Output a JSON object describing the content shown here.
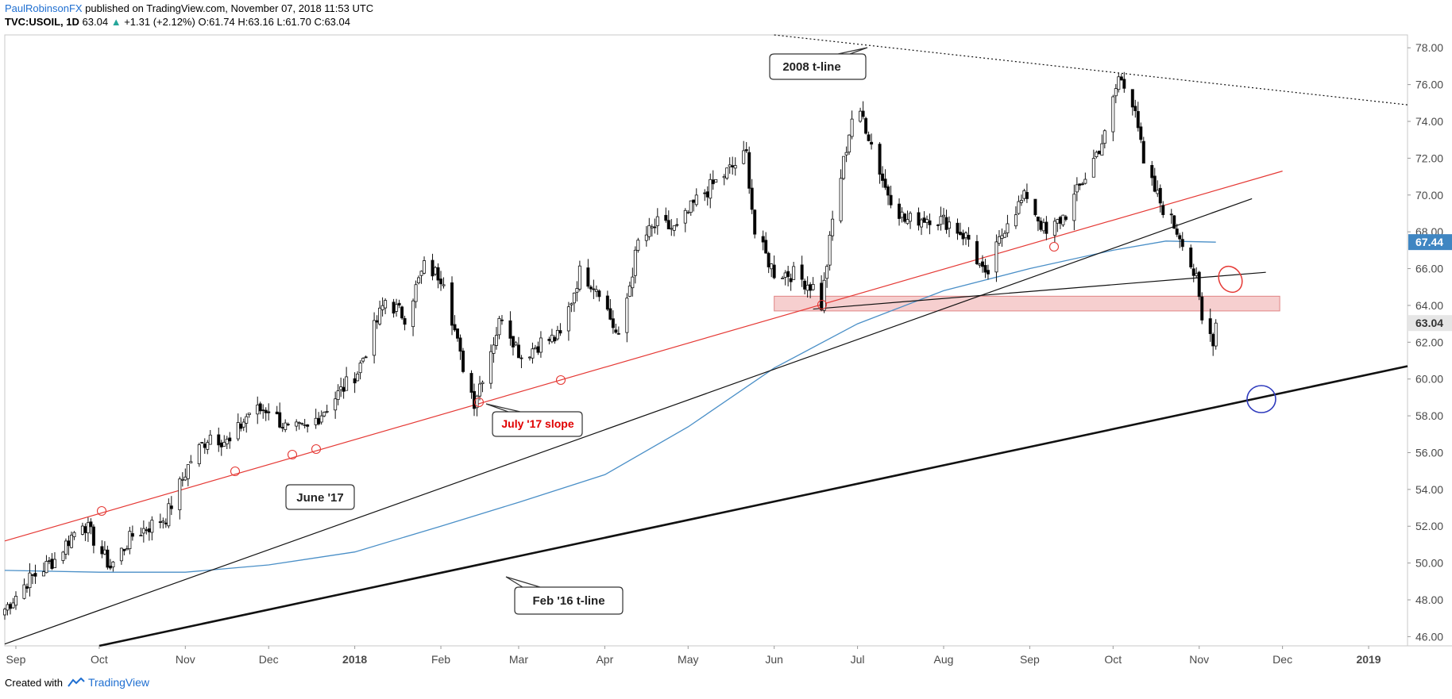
{
  "header": {
    "author": "PaulRobinsonFX",
    "published": " published on TradingView.com, November 07, 2018 11:53 UTC",
    "symbol": "TVC:USOIL, 1D",
    "last": "63.04",
    "change_arrow": "▲",
    "change": "+1.31 (+2.12%)",
    "ohlc": "O:61.74 H:63.16 L:61.70 C:63.04"
  },
  "footer": {
    "created_with": "Created with",
    "brand": "TradingView"
  },
  "colors": {
    "up_candle": "#ffffff",
    "down_candle": "#000000",
    "ma_line": "#4a8fc7",
    "red_trendline": "#e53935",
    "support_zone": "#f6cfcf",
    "price_badge_last": "#e6e6e6",
    "price_badge_ma": "#3f86c2",
    "blue_marker": "#2f3bbd"
  },
  "chart_data": {
    "type": "candlestick",
    "symbol": "TVC:USOIL",
    "interval": "1D",
    "x_axis_ticks": [
      "Sep",
      "Oct",
      "Nov",
      "Dec",
      "2018",
      "Feb",
      "Mar",
      "Apr",
      "May",
      "Jun",
      "Jul",
      "Aug",
      "Sep",
      "Oct",
      "Nov",
      "Dec",
      "2019"
    ],
    "y_axis_ticks": [
      "46.00",
      "48.00",
      "50.00",
      "52.00",
      "54.00",
      "56.00",
      "58.00",
      "60.00",
      "62.00",
      "64.00",
      "66.00",
      "68.00",
      "70.00",
      "72.00",
      "74.00",
      "76.00",
      "78.00"
    ],
    "ylim": [
      45.5,
      78.7
    ],
    "price_labels": {
      "last": "63.04",
      "moving_average": "67.44"
    },
    "approx_close_path": [
      {
        "x": "2017-08-28",
        "y": 47.5
      },
      {
        "x": "2017-09-05",
        "y": 49.0
      },
      {
        "x": "2017-09-15",
        "y": 50.2
      },
      {
        "x": "2017-09-25",
        "y": 52.3
      },
      {
        "x": "2017-10-05",
        "y": 49.8
      },
      {
        "x": "2017-10-13",
        "y": 51.5
      },
      {
        "x": "2017-10-25",
        "y": 52.5
      },
      {
        "x": "2017-11-03",
        "y": 55.6
      },
      {
        "x": "2017-11-10",
        "y": 57.0
      },
      {
        "x": "2017-11-17",
        "y": 56.5
      },
      {
        "x": "2017-11-24",
        "y": 58.2
      },
      {
        "x": "2017-12-01",
        "y": 58.4
      },
      {
        "x": "2017-12-08",
        "y": 57.2
      },
      {
        "x": "2017-12-15",
        "y": 57.3
      },
      {
        "x": "2017-12-22",
        "y": 58.5
      },
      {
        "x": "2018-01-02",
        "y": 60.4
      },
      {
        "x": "2018-01-12",
        "y": 64.3
      },
      {
        "x": "2018-01-19",
        "y": 63.4
      },
      {
        "x": "2018-01-26",
        "y": 66.1
      },
      {
        "x": "2018-02-02",
        "y": 65.5
      },
      {
        "x": "2018-02-08",
        "y": 61.2
      },
      {
        "x": "2018-02-13",
        "y": 58.8
      },
      {
        "x": "2018-02-23",
        "y": 63.5
      },
      {
        "x": "2018-03-02",
        "y": 61.2
      },
      {
        "x": "2018-03-09",
        "y": 62.0
      },
      {
        "x": "2018-03-16",
        "y": 62.3
      },
      {
        "x": "2018-03-23",
        "y": 65.8
      },
      {
        "x": "2018-03-30",
        "y": 64.9
      },
      {
        "x": "2018-04-06",
        "y": 62.1
      },
      {
        "x": "2018-04-13",
        "y": 67.4
      },
      {
        "x": "2018-04-20",
        "y": 68.4
      },
      {
        "x": "2018-04-27",
        "y": 68.1
      },
      {
        "x": "2018-05-04",
        "y": 69.7
      },
      {
        "x": "2018-05-11",
        "y": 70.7
      },
      {
        "x": "2018-05-22",
        "y": 72.2
      },
      {
        "x": "2018-05-25",
        "y": 67.9
      },
      {
        "x": "2018-06-01",
        "y": 65.8
      },
      {
        "x": "2018-06-08",
        "y": 65.7
      },
      {
        "x": "2018-06-15",
        "y": 65.0
      },
      {
        "x": "2018-06-18",
        "y": 64.0
      },
      {
        "x": "2018-06-22",
        "y": 68.6
      },
      {
        "x": "2018-06-29",
        "y": 74.2
      },
      {
        "x": "2018-07-03",
        "y": 74.2
      },
      {
        "x": "2018-07-11",
        "y": 70.4
      },
      {
        "x": "2018-07-18",
        "y": 68.6
      },
      {
        "x": "2018-07-27",
        "y": 68.8
      },
      {
        "x": "2018-08-03",
        "y": 68.5
      },
      {
        "x": "2018-08-10",
        "y": 67.6
      },
      {
        "x": "2018-08-16",
        "y": 65.4
      },
      {
        "x": "2018-08-24",
        "y": 68.7
      },
      {
        "x": "2018-08-31",
        "y": 70.0
      },
      {
        "x": "2018-09-07",
        "y": 67.8
      },
      {
        "x": "2018-09-14",
        "y": 69.0
      },
      {
        "x": "2018-09-21",
        "y": 71.0
      },
      {
        "x": "2018-09-28",
        "y": 73.2
      },
      {
        "x": "2018-10-03",
        "y": 76.4
      },
      {
        "x": "2018-10-09",
        "y": 74.9
      },
      {
        "x": "2018-10-12",
        "y": 71.5
      },
      {
        "x": "2018-10-19",
        "y": 69.3
      },
      {
        "x": "2018-10-26",
        "y": 67.6
      },
      {
        "x": "2018-10-31",
        "y": 65.3
      },
      {
        "x": "2018-11-02",
        "y": 63.1
      },
      {
        "x": "2018-11-06",
        "y": 62.2
      },
      {
        "x": "2018-11-07",
        "y": 63.04
      }
    ],
    "moving_average": [
      {
        "x": "2017-08-28",
        "y": 49.6
      },
      {
        "x": "2017-10-01",
        "y": 49.5
      },
      {
        "x": "2017-11-01",
        "y": 49.5
      },
      {
        "x": "2017-12-01",
        "y": 49.9
      },
      {
        "x": "2018-01-01",
        "y": 50.6
      },
      {
        "x": "2018-02-01",
        "y": 52.0
      },
      {
        "x": "2018-03-01",
        "y": 53.3
      },
      {
        "x": "2018-04-01",
        "y": 54.8
      },
      {
        "x": "2018-05-01",
        "y": 57.4
      },
      {
        "x": "2018-06-01",
        "y": 60.6
      },
      {
        "x": "2018-07-01",
        "y": 63.0
      },
      {
        "x": "2018-08-01",
        "y": 64.8
      },
      {
        "x": "2018-09-01",
        "y": 66.0
      },
      {
        "x": "2018-10-01",
        "y": 67.0
      },
      {
        "x": "2018-10-20",
        "y": 67.5
      },
      {
        "x": "2018-11-07",
        "y": 67.44
      }
    ],
    "trendlines": [
      {
        "label": "July '17 slope",
        "color": "red",
        "from": {
          "x": "2017-08-28",
          "y": 51.2
        },
        "to": {
          "x": "2018-12-01",
          "y": 71.3
        }
      },
      {
        "label": "June '17",
        "color": "black",
        "from": {
          "x": "2017-08-28",
          "y": 45.6
        },
        "to": {
          "x": "2018-11-20",
          "y": 69.8
        }
      },
      {
        "label": "Feb '16 t-line",
        "color": "black",
        "weight": "thick",
        "from": {
          "x": "2017-10-01",
          "y": 45.5
        },
        "to": {
          "x": "2019-01-15",
          "y": 60.7
        }
      },
      {
        "label": "2008 t-line",
        "color": "black",
        "style": "dotted",
        "from": {
          "x": "2018-06-01",
          "y": 78.7
        },
        "to": {
          "x": "2019-01-15",
          "y": 74.9
        }
      },
      {
        "label": "",
        "color": "black",
        "from": {
          "x": "2018-06-15",
          "y": 63.8
        },
        "to": {
          "x": "2018-11-25",
          "y": 65.8
        }
      }
    ],
    "support_zone": {
      "y_low": 63.7,
      "y_high": 64.5,
      "from": "2018-06-01",
      "to": "2018-11-30"
    },
    "annotations": [
      {
        "text": "2008 t-line"
      },
      {
        "text": "June '17"
      },
      {
        "text": "July '17 slope"
      },
      {
        "text": "Feb '16 t-line"
      }
    ],
    "grid": false,
    "legend": "none"
  }
}
